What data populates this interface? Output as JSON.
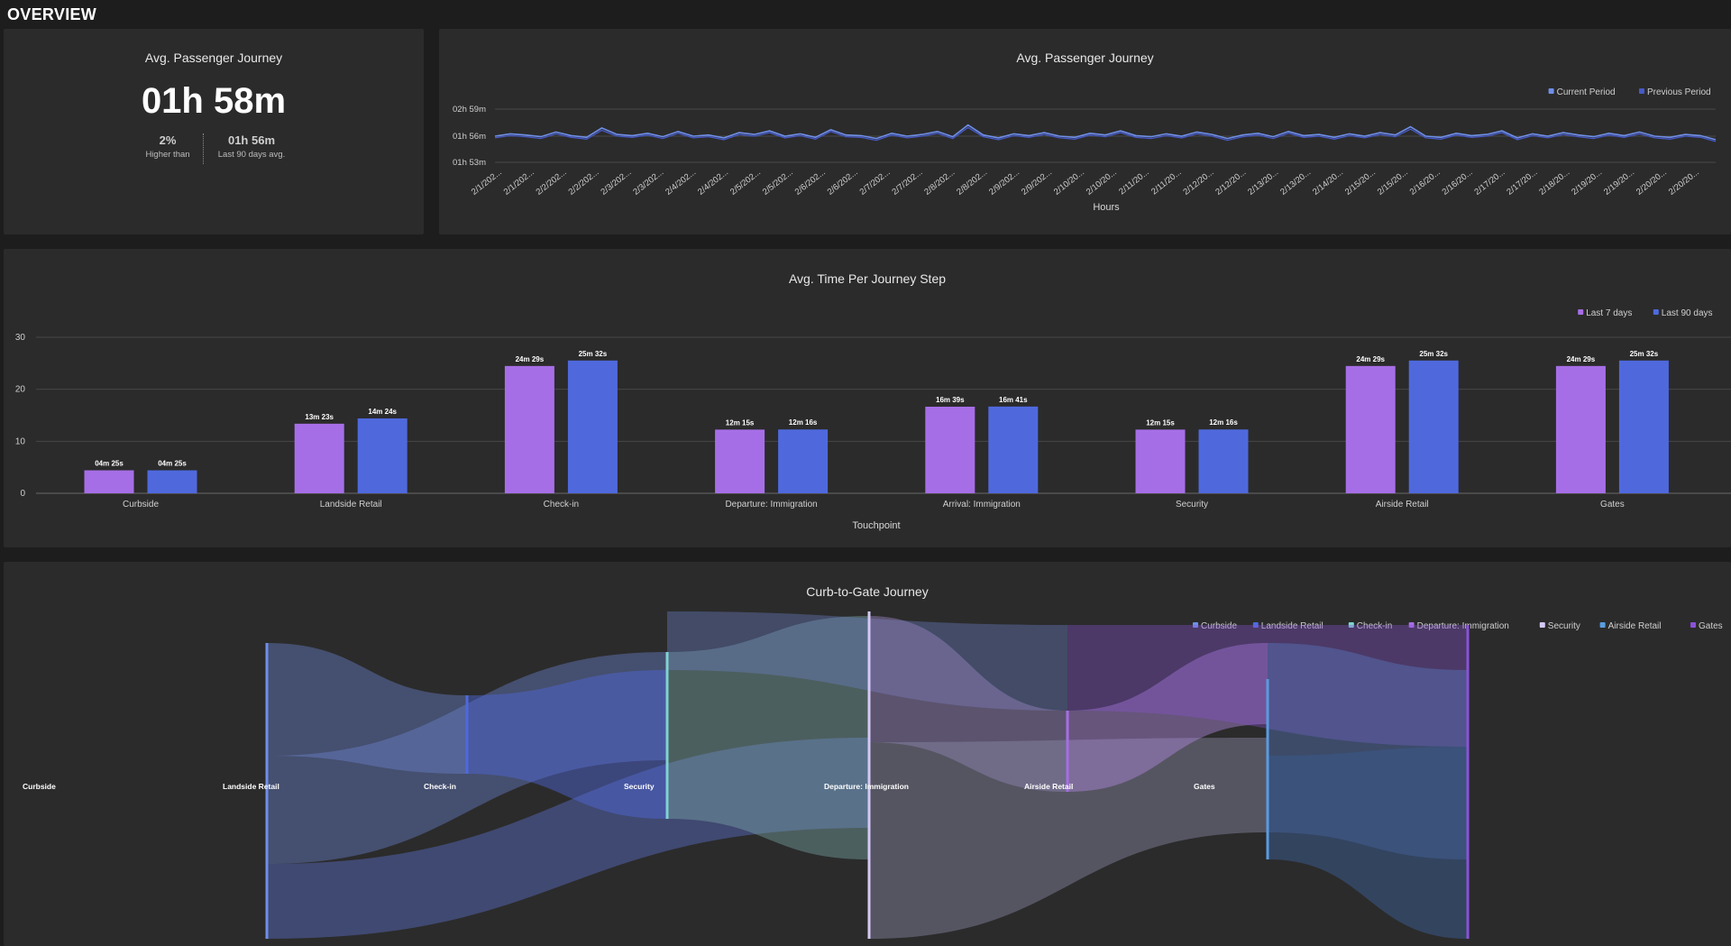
{
  "page_title": "OVERVIEW",
  "kpi": {
    "title": "Avg. Passenger Journey",
    "value": "01h 58m",
    "change": "2%",
    "change_label": "Higher than",
    "avg": "01h 56m",
    "avg_label": "Last 90 days avg."
  },
  "colors": {
    "background": "#1d1d1d",
    "panel": "#2b2b2b",
    "purple": "#a66ee6",
    "blue": "#4f69dd",
    "line_current": "#6f8fe8",
    "line_previous": "#4659c8"
  },
  "trend": {
    "title": "Avg. Passenger Journey",
    "legend": [
      {
        "label": "Current Period",
        "color": "#6f8fe8"
      },
      {
        "label": "Previous Period",
        "color": "#4659c8"
      }
    ],
    "y_ticks": [
      "02h 59m",
      "01h 56m",
      "01h 53m"
    ],
    "x_ticks": [
      "2/1/202...",
      "2/1/202...",
      "2/2/202...",
      "2/2/202...",
      "2/3/202...",
      "2/3/202...",
      "2/4/202...",
      "2/4/202...",
      "2/5/202...",
      "2/5/202...",
      "2/6/202...",
      "2/6/202...",
      "2/7/202...",
      "2/7/202...",
      "2/8/202...",
      "2/8/202...",
      "2/9/202...",
      "2/9/202...",
      "2/10/20...",
      "2/10/20...",
      "2/11/20...",
      "2/11/20...",
      "2/12/20...",
      "2/12/20...",
      "2/13/20...",
      "2/13/20...",
      "2/14/20...",
      "2/15/20...",
      "2/15/20...",
      "2/16/20...",
      "2/16/20...",
      "2/17/20...",
      "2/17/20...",
      "2/18/20...",
      "2/19/20...",
      "2/19/20...",
      "2/20/20...",
      "2/20/20..."
    ],
    "xlabel": "Hours"
  },
  "bars": {
    "title": "Avg. Time Per Journey Step",
    "legend": [
      {
        "label": "Last 7 days",
        "color": "#a66ee6"
      },
      {
        "label": "Last 90 days",
        "color": "#4f69dd"
      }
    ],
    "y_ticks": [
      "30",
      "20",
      "10",
      "0"
    ],
    "xlabel": "Touchpoint"
  },
  "chart_data": [
    {
      "type": "bar",
      "title": "Avg. Time Per Journey Step",
      "xlabel": "Touchpoint",
      "ylabel": "",
      "ylim": [
        0,
        30
      ],
      "grid": true,
      "legend_position": "top-right",
      "categories": [
        "Curbside",
        "Landside Retail",
        "Check-in",
        "Departure: Immigration",
        "Arrival: Immigration",
        "Security",
        "Airside Retail",
        "Gates"
      ],
      "series": [
        {
          "name": "Last 7 days",
          "values": [
            4.42,
            13.38,
            24.48,
            12.25,
            16.65,
            12.25,
            24.48,
            24.48
          ],
          "labels": [
            "04m 25s",
            "13m 23s",
            "24m 29s",
            "12m 15s",
            "16m 39s",
            "12m 15s",
            "24m 29s",
            "24m 29s"
          ]
        },
        {
          "name": "Last 90 days",
          "values": [
            4.42,
            14.4,
            25.53,
            12.27,
            16.68,
            12.27,
            25.53,
            25.53
          ],
          "labels": [
            "04m 25s",
            "14m 24s",
            "25m 32s",
            "12m 16s",
            "16m 41s",
            "12m 16s",
            "25m 32s",
            "25m 32s"
          ]
        }
      ]
    },
    {
      "type": "line",
      "title": "Avg. Passenger Journey",
      "xlabel": "Hours",
      "ylabel": "",
      "y_unit": "minutes",
      "ylim": [
        113,
        179
      ],
      "legend_position": "top-right",
      "series": [
        {
          "name": "Current Period",
          "values": [
            116.0,
            116.4,
            116.2,
            115.9,
            116.7,
            116.1,
            115.8,
            117.4,
            116.3,
            116.1,
            116.5,
            115.9,
            116.8,
            116.0,
            116.2,
            115.7,
            116.6,
            116.3,
            116.9,
            116.0,
            116.4,
            115.8,
            117.1,
            116.2,
            116.1,
            115.6,
            116.5,
            116.0,
            116.3,
            116.8,
            115.9,
            117.9,
            116.2,
            115.7,
            116.4,
            116.1,
            116.6,
            116.0,
            115.8,
            116.5,
            116.2,
            116.9,
            116.1,
            115.9,
            116.4,
            116.0,
            116.7,
            116.3,
            115.6,
            116.2,
            116.5,
            115.9,
            116.8,
            116.1,
            116.3,
            115.8,
            116.4,
            116.0,
            116.6,
            116.2,
            117.6,
            116.0,
            115.8,
            116.5,
            116.1,
            116.3,
            116.9,
            115.7,
            116.4,
            116.0,
            116.6,
            116.2,
            115.9,
            116.5,
            116.1,
            116.7,
            116.0,
            115.8,
            116.3,
            116.1,
            115.4
          ]
        },
        {
          "name": "Previous Period",
          "values": [
            115.7,
            116.1,
            115.9,
            115.6,
            116.4,
            115.8,
            115.5,
            117.0,
            116.0,
            115.8,
            116.2,
            115.6,
            116.5,
            115.7,
            115.9,
            115.4,
            116.3,
            116.0,
            116.6,
            115.7,
            116.1,
            115.5,
            116.8,
            115.9,
            115.8,
            115.3,
            116.2,
            115.7,
            116.0,
            116.5,
            115.6,
            117.5,
            115.9,
            115.4,
            116.1,
            115.8,
            116.3,
            115.7,
            115.5,
            116.2,
            115.9,
            116.6,
            115.8,
            115.6,
            116.1,
            115.7,
            116.4,
            116.0,
            115.3,
            115.9,
            116.2,
            115.6,
            116.5,
            115.8,
            116.0,
            115.5,
            116.1,
            115.7,
            116.3,
            115.9,
            117.2,
            115.7,
            115.5,
            116.2,
            115.8,
            116.0,
            116.6,
            115.4,
            116.1,
            115.7,
            116.3,
            115.9,
            115.6,
            116.2,
            115.8,
            116.4,
            115.7,
            115.5,
            116.0,
            115.8,
            115.1
          ]
        }
      ]
    }
  ],
  "sankey": {
    "title": "Curb-to-Gate Journey",
    "legend": [
      {
        "label": "Curbside",
        "color": "#6f8fe8"
      },
      {
        "label": "Landside Retail",
        "color": "#4f69dd"
      },
      {
        "label": "Check-in",
        "color": "#7fd3d3"
      },
      {
        "label": "Departure: Immigration",
        "color": "#a66ee6"
      },
      {
        "label": "Security",
        "color": "#d4c8f4"
      },
      {
        "label": "Airside Retail",
        "color": "#5a9be0"
      },
      {
        "label": "Gates",
        "color": "#8a52d8"
      }
    ],
    "node_labels": [
      "Curbside",
      "Landside Retail",
      "Check-in",
      "Security",
      "Departure: Immigration",
      "Airside Retail",
      "Gates"
    ]
  }
}
